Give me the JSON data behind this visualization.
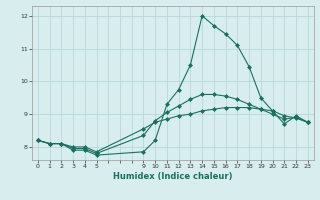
{
  "xlabel": "Humidex (Indice chaleur)",
  "bg_color": "#d8eeee",
  "grid_color": "#b8d8d8",
  "line_color": "#1a7060",
  "xlim": [
    -0.5,
    23.5
  ],
  "ylim": [
    7.6,
    12.3
  ],
  "xticks": [
    0,
    1,
    2,
    3,
    4,
    5,
    9,
    10,
    11,
    12,
    13,
    14,
    15,
    16,
    17,
    18,
    19,
    20,
    21,
    22,
    23
  ],
  "yticks": [
    8,
    9,
    10,
    11,
    12
  ],
  "lines": [
    {
      "x": [
        0,
        1,
        2,
        3,
        4,
        5,
        9,
        10,
        11,
        12,
        13,
        14,
        15,
        16,
        17,
        18,
        19,
        20,
        21,
        22,
        23
      ],
      "y": [
        8.2,
        8.1,
        8.1,
        7.9,
        7.9,
        7.75,
        7.85,
        8.2,
        9.3,
        9.75,
        10.5,
        12.0,
        11.7,
        11.45,
        11.1,
        10.45,
        9.5,
        9.1,
        8.7,
        8.95,
        8.75
      ]
    },
    {
      "x": [
        0,
        1,
        2,
        3,
        4,
        5,
        9,
        10,
        11,
        12,
        13,
        14,
        15,
        16,
        17,
        18,
        19,
        20,
        21,
        22,
        23
      ],
      "y": [
        8.2,
        8.1,
        8.1,
        7.95,
        7.95,
        7.8,
        8.35,
        8.8,
        9.05,
        9.25,
        9.45,
        9.6,
        9.6,
        9.55,
        9.45,
        9.3,
        9.15,
        9.0,
        8.85,
        8.9,
        8.75
      ]
    },
    {
      "x": [
        0,
        1,
        2,
        3,
        4,
        5,
        9,
        10,
        11,
        12,
        13,
        14,
        15,
        16,
        17,
        18,
        19,
        20,
        21,
        22,
        23
      ],
      "y": [
        8.2,
        8.1,
        8.1,
        8.0,
        8.0,
        7.85,
        8.55,
        8.75,
        8.85,
        8.95,
        9.0,
        9.1,
        9.15,
        9.2,
        9.2,
        9.2,
        9.15,
        9.1,
        8.95,
        8.88,
        8.75
      ]
    }
  ]
}
